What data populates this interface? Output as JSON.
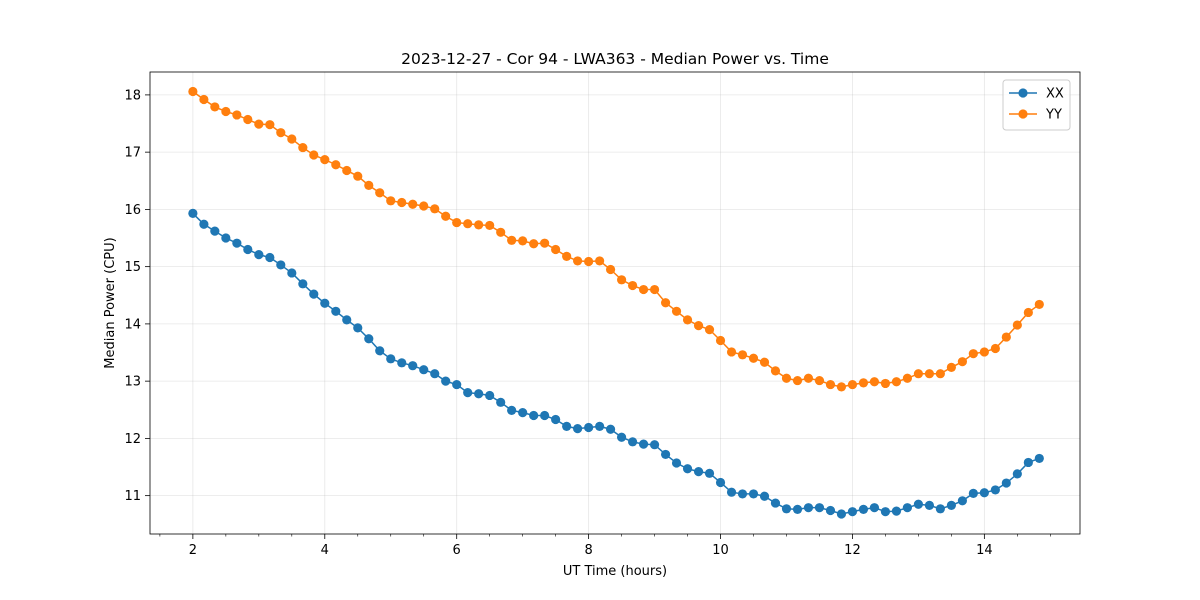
{
  "chart_data": {
    "type": "line",
    "title": "2023-12-27 - Cor 94 - LWA363 - Median Power vs. Time",
    "xlabel": "UT Time (hours)",
    "ylabel": "Median Power (CPU)",
    "xlim": [
      1.35,
      15.45
    ],
    "ylim": [
      10.33,
      18.4
    ],
    "xticks": [
      2,
      4,
      6,
      8,
      10,
      12,
      14
    ],
    "xticks_minor_step": 0.5,
    "yticks": [
      11,
      12,
      13,
      14,
      15,
      16,
      17,
      18
    ],
    "grid": true,
    "legend_position": "top-right",
    "x": [
      2.0,
      2.167,
      2.333,
      2.5,
      2.667,
      2.833,
      3.0,
      3.167,
      3.333,
      3.5,
      3.667,
      3.833,
      4.0,
      4.167,
      4.333,
      4.5,
      4.667,
      4.833,
      5.0,
      5.167,
      5.333,
      5.5,
      5.667,
      5.833,
      6.0,
      6.167,
      6.333,
      6.5,
      6.667,
      6.833,
      7.0,
      7.167,
      7.333,
      7.5,
      7.667,
      7.833,
      8.0,
      8.167,
      8.333,
      8.5,
      8.667,
      8.833,
      9.0,
      9.167,
      9.333,
      9.5,
      9.667,
      9.833,
      10.0,
      10.167,
      10.333,
      10.5,
      10.667,
      10.833,
      11.0,
      11.167,
      11.333,
      11.5,
      11.667,
      11.833,
      12.0,
      12.167,
      12.333,
      12.5,
      12.667,
      12.833,
      13.0,
      13.167,
      13.333,
      13.5,
      13.667,
      13.833,
      14.0,
      14.167,
      14.333,
      14.5,
      14.667,
      14.833
    ],
    "series": [
      {
        "name": "XX",
        "color": "#1f77b4",
        "values": [
          15.93,
          15.74,
          15.62,
          15.5,
          15.41,
          15.3,
          15.21,
          15.16,
          15.03,
          14.89,
          14.7,
          14.52,
          14.36,
          14.22,
          14.07,
          13.93,
          13.74,
          13.53,
          13.39,
          13.32,
          13.27,
          13.2,
          13.13,
          13.0,
          12.94,
          12.8,
          12.78,
          12.75,
          12.63,
          12.49,
          12.45,
          12.4,
          12.4,
          12.33,
          12.21,
          12.17,
          12.19,
          12.21,
          12.16,
          12.02,
          11.94,
          11.9,
          11.89,
          11.72,
          11.57,
          11.47,
          11.42,
          11.39,
          11.23,
          11.06,
          11.03,
          11.03,
          10.99,
          10.87,
          10.77,
          10.76,
          10.79,
          10.79,
          10.74,
          10.68,
          10.72,
          10.76,
          10.79,
          10.72,
          10.73,
          10.79,
          10.85,
          10.83,
          10.77,
          10.83,
          10.91,
          11.04,
          11.05,
          11.1,
          11.22,
          11.38,
          11.58,
          11.65
        ]
      },
      {
        "name": "YY",
        "color": "#ff7f0e",
        "values": [
          18.06,
          17.92,
          17.79,
          17.71,
          17.65,
          17.57,
          17.49,
          17.48,
          17.34,
          17.23,
          17.08,
          16.95,
          16.87,
          16.78,
          16.68,
          16.58,
          16.42,
          16.29,
          16.15,
          16.12,
          16.09,
          16.06,
          16.01,
          15.88,
          15.77,
          15.75,
          15.73,
          15.72,
          15.6,
          15.46,
          15.45,
          15.4,
          15.41,
          15.3,
          15.18,
          15.1,
          15.09,
          15.1,
          14.95,
          14.77,
          14.67,
          14.6,
          14.6,
          14.37,
          14.22,
          14.07,
          13.97,
          13.9,
          13.71,
          13.51,
          13.46,
          13.4,
          13.33,
          13.18,
          13.05,
          13.01,
          13.05,
          13.01,
          12.94,
          12.9,
          12.94,
          12.97,
          12.99,
          12.96,
          12.99,
          13.05,
          13.13,
          13.13,
          13.13,
          13.24,
          13.34,
          13.48,
          13.51,
          13.57,
          13.77,
          13.98,
          14.2,
          14.34
        ]
      }
    ]
  }
}
